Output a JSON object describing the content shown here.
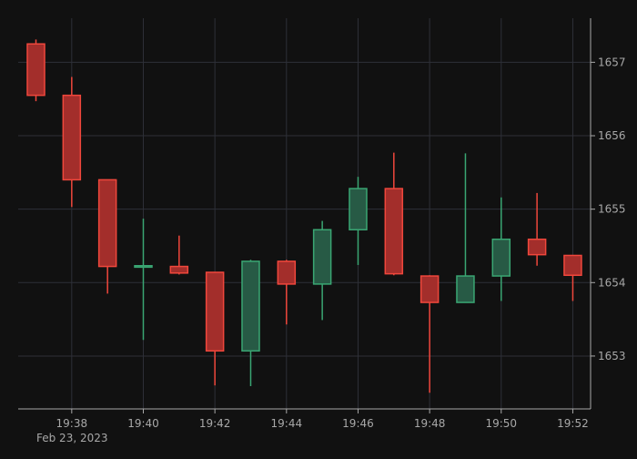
{
  "chart_data": {
    "type": "candlestick",
    "date_label": "Feb 23, 2023",
    "x_ticks": [
      "19:38",
      "19:40",
      "19:42",
      "19:44",
      "19:46",
      "19:48",
      "19:50",
      "19:52"
    ],
    "y_ticks": [
      1653,
      1654,
      1655,
      1656,
      1657
    ],
    "ylim": [
      1652.28,
      1657.6
    ],
    "grid": true,
    "y_axis_side": "right",
    "colors": {
      "up": "#3aa673",
      "down": "#f0473c",
      "up_fill": "#275a45",
      "down_fill": "#a32e2b",
      "grid": "#2e3038",
      "axis": "#a8a8a8",
      "background": "#111111"
    },
    "candles": [
      {
        "time": "19:37",
        "open": 1657.25,
        "high": 1657.31,
        "low": 1656.47,
        "close": 1656.55
      },
      {
        "time": "19:38",
        "open": 1656.55,
        "high": 1656.8,
        "low": 1655.03,
        "close": 1655.4
      },
      {
        "time": "19:39",
        "open": 1655.4,
        "high": 1655.4,
        "low": 1653.85,
        "close": 1654.22
      },
      {
        "time": "19:40",
        "open": 1654.21,
        "high": 1654.87,
        "low": 1653.22,
        "close": 1654.23
      },
      {
        "time": "19:41",
        "open": 1654.22,
        "high": 1654.64,
        "low": 1654.11,
        "close": 1654.13
      },
      {
        "time": "19:42",
        "open": 1654.14,
        "high": 1654.14,
        "low": 1652.6,
        "close": 1653.07
      },
      {
        "time": "19:43",
        "open": 1653.07,
        "high": 1654.31,
        "low": 1652.59,
        "close": 1654.29
      },
      {
        "time": "19:44",
        "open": 1654.29,
        "high": 1654.31,
        "low": 1653.43,
        "close": 1653.98
      },
      {
        "time": "19:45",
        "open": 1653.98,
        "high": 1654.84,
        "low": 1653.49,
        "close": 1654.72
      },
      {
        "time": "19:46",
        "open": 1654.72,
        "high": 1655.44,
        "low": 1654.24,
        "close": 1655.28
      },
      {
        "time": "19:47",
        "open": 1655.28,
        "high": 1655.77,
        "low": 1654.1,
        "close": 1654.12
      },
      {
        "time": "19:48",
        "open": 1654.09,
        "high": 1654.1,
        "low": 1652.5,
        "close": 1653.73
      },
      {
        "time": "19:49",
        "open": 1653.73,
        "high": 1655.76,
        "low": 1653.73,
        "close": 1654.09
      },
      {
        "time": "19:50",
        "open": 1654.09,
        "high": 1655.16,
        "low": 1653.75,
        "close": 1654.59
      },
      {
        "time": "19:51",
        "open": 1654.59,
        "high": 1655.22,
        "low": 1654.23,
        "close": 1654.38
      },
      {
        "time": "19:52",
        "open": 1654.37,
        "high": 1654.37,
        "low": 1653.75,
        "close": 1654.1
      }
    ]
  }
}
